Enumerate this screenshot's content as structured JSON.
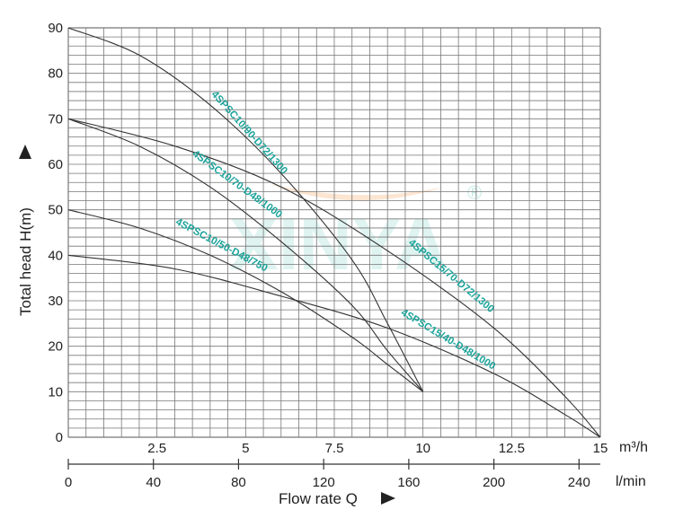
{
  "chart_data": {
    "type": "line",
    "title": "",
    "xlabel": "Flow rate Q",
    "ylabel": "Total head H(m)",
    "xlim": [
      0,
      15
    ],
    "ylim": [
      0,
      90
    ],
    "grid": true,
    "x_ticks_m3h": [
      "2.5",
      "5",
      "7.5",
      "10",
      "12.5",
      "15"
    ],
    "x_ticks_lmin": [
      "0",
      "40",
      "80",
      "120",
      "160",
      "200",
      "240"
    ],
    "y_ticks": [
      "0",
      "10",
      "20",
      "30",
      "40",
      "50",
      "60",
      "70",
      "80",
      "90"
    ],
    "x_unit_top": "m³/h",
    "x_unit_bottom": "l/min",
    "series": [
      {
        "name": "4SPSC10/90-D72/1300",
        "x": [
          0,
          2,
          4,
          6,
          8,
          9,
          10
        ],
        "y": [
          90,
          84,
          73,
          58,
          39,
          25,
          10
        ]
      },
      {
        "name": "4SPSC10/70-D48/1000",
        "x": [
          0,
          2,
          4,
          6,
          8,
          9,
          10
        ],
        "y": [
          70,
          64,
          55,
          43,
          29,
          19,
          10
        ]
      },
      {
        "name": "4SPSC10/50-D48/750",
        "x": [
          0,
          2,
          4,
          6,
          8,
          9,
          10
        ],
        "y": [
          50,
          46,
          40,
          32,
          22,
          16,
          10
        ]
      },
      {
        "name": "4SPSC15/70-D72/1300",
        "x": [
          0,
          3,
          6,
          9,
          12,
          14,
          15
        ],
        "y": [
          70,
          64,
          55,
          41,
          24,
          9,
          0
        ]
      },
      {
        "name": "4SPSC15/40-D48/1000",
        "x": [
          0,
          3,
          6,
          9,
          12,
          14,
          15
        ],
        "y": [
          40,
          37,
          31,
          24,
          14,
          5,
          0
        ]
      }
    ]
  },
  "watermark": {
    "text": "XINYA",
    "mark": "®"
  },
  "colors": {
    "grid": "#777777",
    "curve": "#333333",
    "label": "#1aa39a",
    "watermark": "#8fd8cc"
  }
}
